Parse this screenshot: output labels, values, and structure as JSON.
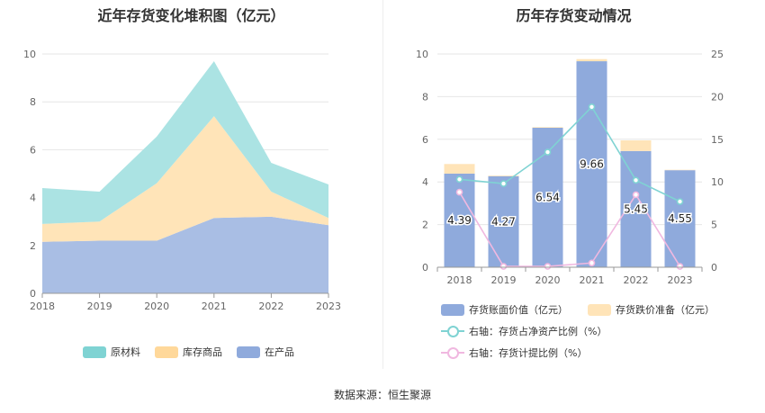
{
  "charts_titles": {
    "left": "近年存货变化堆积图（亿元）",
    "right": "历年存货变动情况"
  },
  "source_text": "数据来源：恒生聚源",
  "chart_data": [
    {
      "type": "area",
      "stacked": true,
      "title": "近年存货变化堆积图（亿元）",
      "categories": [
        "2018",
        "2019",
        "2020",
        "2021",
        "2022",
        "2023"
      ],
      "ylim": [
        0,
        10
      ],
      "yticks": [
        0,
        2,
        4,
        6,
        8,
        10
      ],
      "grid": true,
      "legend_position": "bottom",
      "series": [
        {
          "name": "在产品",
          "color": "#A9BEE4",
          "legend_color": "#8FAADC",
          "values": [
            2.15,
            2.2,
            2.2,
            3.15,
            3.2,
            2.85
          ]
        },
        {
          "name": "库存商品",
          "color": "#FFE4B8",
          "legend_color": "#FFD89A",
          "values": [
            0.75,
            0.8,
            2.4,
            4.25,
            1.05,
            0.3
          ]
        },
        {
          "name": "原材料",
          "color": "#ABE3E3",
          "legend_color": "#7FD3D3",
          "values": [
            1.5,
            1.25,
            1.95,
            2.3,
            1.2,
            1.4
          ]
        }
      ],
      "legend_order": [
        "原材料",
        "库存商品",
        "在产品"
      ]
    },
    {
      "type": "bar",
      "stacked": true,
      "title": "历年存货变动情况",
      "categories": [
        "2018",
        "2019",
        "2020",
        "2021",
        "2022",
        "2023"
      ],
      "ylim": [
        0,
        10
      ],
      "yticks": [
        0,
        2,
        4,
        6,
        8,
        10
      ],
      "y2lim": [
        0,
        25
      ],
      "y2ticks": [
        0,
        5,
        10,
        15,
        20,
        25
      ],
      "grid": true,
      "legend_position": "bottom",
      "series": [
        {
          "name": "存货账面价值（亿元）",
          "color": "#8FAADC",
          "values": [
            4.39,
            4.27,
            6.54,
            9.66,
            5.45,
            4.55
          ],
          "data_labels": [
            "4.39",
            "4.27",
            "6.54",
            "9.66",
            "5.45",
            "4.55"
          ]
        },
        {
          "name": "存货跌价准备（亿元）",
          "color": "#FFE4B8",
          "values": [
            0.45,
            0.03,
            0.03,
            0.1,
            0.5,
            0.02
          ]
        }
      ],
      "lines": [
        {
          "name": "右轴：存货占净资产比例（%）",
          "color": "#7FD3D3",
          "axis": "right",
          "values": [
            10.3,
            9.8,
            13.5,
            18.8,
            10.2,
            7.7
          ]
        },
        {
          "name": "右轴：存货计提比例（%）",
          "color": "#F0B8E0",
          "axis": "right",
          "values": [
            8.8,
            0.1,
            0.1,
            0.5,
            8.5,
            0.1
          ]
        }
      ]
    }
  ]
}
